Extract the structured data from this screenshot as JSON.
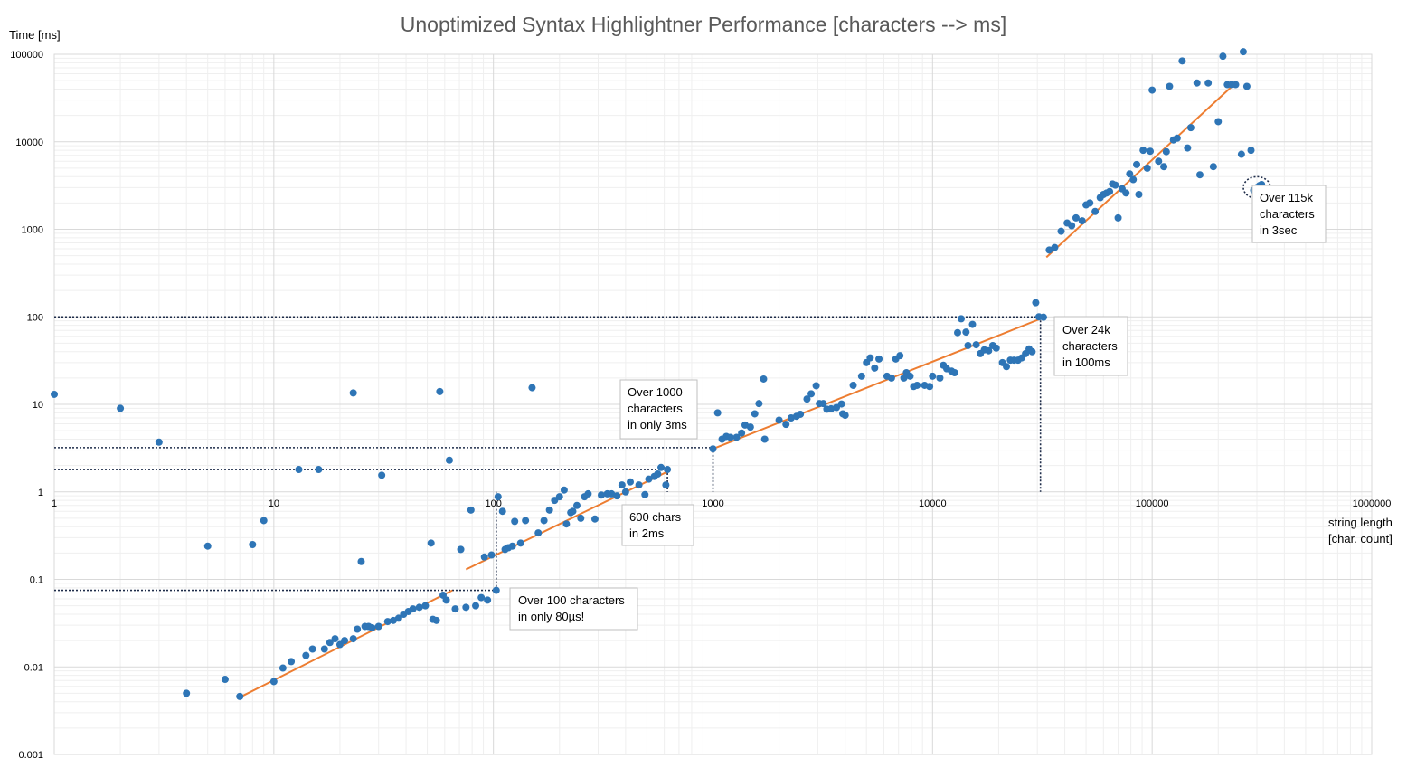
{
  "chart_data": {
    "type": "scatter",
    "title": "Unoptimized Syntax Highlightner Performance  [characters --> ms]",
    "ylabel": "Time [ms]",
    "xlabel_lines": [
      "string length",
      "[char. count]"
    ],
    "x_scale": "log",
    "y_scale": "log",
    "xlim": [
      1,
      1000000
    ],
    "ylim": [
      0.001,
      100000
    ],
    "x_ticks": [
      "1",
      "10",
      "100",
      "1000",
      "10000",
      "100000",
      "1000000"
    ],
    "y_ticks": [
      "100000",
      "10000",
      "1000",
      "100",
      "10",
      "1",
      "0.1",
      "0.01",
      "0.001"
    ],
    "grid": true,
    "colors": {
      "points": "#2e75b6",
      "trend": "#ed7d31",
      "grid": "#d9d9d9",
      "guide": "#1f2d4a"
    },
    "points": [
      [
        1,
        13
      ],
      [
        2,
        9
      ],
      [
        3,
        3.7
      ],
      [
        4,
        0.005
      ],
      [
        5,
        0.24
      ],
      [
        6,
        0.0072
      ],
      [
        7,
        0.0046
      ],
      [
        8,
        0.25
      ],
      [
        9,
        0.47
      ],
      [
        10,
        0.0068
      ],
      [
        11,
        0.0097
      ],
      [
        12,
        0.0115
      ],
      [
        13,
        1.8
      ],
      [
        14,
        0.0135
      ],
      [
        15,
        0.016
      ],
      [
        16,
        1.8
      ],
      [
        17,
        0.016
      ],
      [
        18,
        0.019
      ],
      [
        19,
        0.021
      ],
      [
        20,
        0.018
      ],
      [
        21,
        0.02
      ],
      [
        23,
        0.021
      ],
      [
        23,
        13.5
      ],
      [
        24,
        0.027
      ],
      [
        25,
        0.16
      ],
      [
        26,
        0.029
      ],
      [
        27,
        0.029
      ],
      [
        28,
        0.028
      ],
      [
        30,
        0.029
      ],
      [
        31,
        1.55
      ],
      [
        33,
        0.033
      ],
      [
        35,
        0.034
      ],
      [
        37,
        0.036
      ],
      [
        39,
        0.04
      ],
      [
        41,
        0.043
      ],
      [
        43,
        0.046
      ],
      [
        46,
        0.048
      ],
      [
        49,
        0.05
      ],
      [
        52,
        0.26
      ],
      [
        53,
        0.035
      ],
      [
        55,
        0.034
      ],
      [
        57,
        14
      ],
      [
        59,
        0.066
      ],
      [
        61,
        0.058
      ],
      [
        63,
        2.3
      ],
      [
        67,
        0.046
      ],
      [
        71,
        0.22
      ],
      [
        75,
        0.048
      ],
      [
        79,
        0.62
      ],
      [
        83,
        0.05
      ],
      [
        88,
        0.062
      ],
      [
        91,
        0.18
      ],
      [
        94,
        0.058
      ],
      [
        98,
        0.19
      ],
      [
        103,
        0.075
      ],
      [
        105,
        0.88
      ],
      [
        110,
        0.6
      ],
      [
        113,
        0.22
      ],
      [
        117,
        0.23
      ],
      [
        122,
        0.24
      ],
      [
        125,
        0.46
      ],
      [
        133,
        0.26
      ],
      [
        140,
        0.47
      ],
      [
        150,
        15.5
      ],
      [
        160,
        0.34
      ],
      [
        170,
        0.47
      ],
      [
        180,
        0.62
      ],
      [
        190,
        0.8
      ],
      [
        200,
        0.88
      ],
      [
        210,
        1.05
      ],
      [
        215,
        0.43
      ],
      [
        225,
        0.58
      ],
      [
        230,
        0.6
      ],
      [
        240,
        0.7
      ],
      [
        250,
        0.5
      ],
      [
        260,
        0.88
      ],
      [
        270,
        0.95
      ],
      [
        290,
        0.49
      ],
      [
        310,
        0.92
      ],
      [
        330,
        0.95
      ],
      [
        345,
        0.95
      ],
      [
        365,
        0.9
      ],
      [
        385,
        1.2
      ],
      [
        400,
        1.0
      ],
      [
        420,
        1.3
      ],
      [
        460,
        1.2
      ],
      [
        490,
        0.93
      ],
      [
        510,
        1.4
      ],
      [
        540,
        1.5
      ],
      [
        560,
        1.6
      ],
      [
        580,
        1.9
      ],
      [
        610,
        1.2
      ],
      [
        620,
        1.8
      ],
      [
        1000,
        3.1
      ],
      [
        1050,
        8
      ],
      [
        1100,
        4
      ],
      [
        1150,
        4.3
      ],
      [
        1200,
        4.2
      ],
      [
        1280,
        4.2
      ],
      [
        1350,
        4.7
      ],
      [
        1400,
        5.8
      ],
      [
        1480,
        5.5
      ],
      [
        1550,
        7.8
      ],
      [
        1620,
        10.2
      ],
      [
        1700,
        19.5
      ],
      [
        1720,
        4
      ],
      [
        2000,
        6.6
      ],
      [
        2150,
        5.9
      ],
      [
        2270,
        7
      ],
      [
        2400,
        7.3
      ],
      [
        2500,
        7.7
      ],
      [
        2680,
        11.5
      ],
      [
        2800,
        13.2
      ],
      [
        2950,
        16.3
      ],
      [
        3050,
        10.2
      ],
      [
        3180,
        10.2
      ],
      [
        3300,
        8.8
      ],
      [
        3450,
        8.9
      ],
      [
        3650,
        9.2
      ],
      [
        3850,
        10.1
      ],
      [
        3900,
        7.8
      ],
      [
        4000,
        7.5
      ],
      [
        4350,
        16.5
      ],
      [
        4750,
        21
      ],
      [
        5000,
        30
      ],
      [
        5200,
        34
      ],
      [
        5450,
        26
      ],
      [
        5700,
        33
      ],
      [
        6200,
        21
      ],
      [
        6500,
        20
      ],
      [
        6800,
        33
      ],
      [
        7100,
        36
      ],
      [
        7400,
        20
      ],
      [
        7600,
        23
      ],
      [
        7900,
        21
      ],
      [
        8200,
        16
      ],
      [
        8500,
        16.5
      ],
      [
        9200,
        16.5
      ],
      [
        9700,
        16
      ],
      [
        10000,
        21
      ],
      [
        10800,
        20
      ],
      [
        11200,
        28
      ],
      [
        11600,
        25.5
      ],
      [
        12200,
        24
      ],
      [
        12600,
        23
      ],
      [
        13000,
        66
      ],
      [
        13500,
        95
      ],
      [
        14200,
        67
      ],
      [
        14500,
        47
      ],
      [
        15200,
        82
      ],
      [
        15800,
        48
      ],
      [
        16500,
        38
      ],
      [
        17200,
        42
      ],
      [
        18000,
        41
      ],
      [
        18800,
        47
      ],
      [
        19500,
        44
      ],
      [
        20800,
        30
      ],
      [
        21700,
        27
      ],
      [
        22600,
        32
      ],
      [
        23500,
        32
      ],
      [
        24500,
        32
      ],
      [
        25500,
        34
      ],
      [
        26500,
        38
      ],
      [
        27500,
        43
      ],
      [
        28400,
        40
      ],
      [
        29500,
        145
      ],
      [
        30500,
        100
      ],
      [
        32000,
        99
      ],
      [
        34000,
        580
      ],
      [
        36000,
        620
      ],
      [
        38500,
        950
      ],
      [
        41000,
        1180
      ],
      [
        43000,
        1100
      ],
      [
        45000,
        1350
      ],
      [
        48000,
        1250
      ],
      [
        50000,
        1900
      ],
      [
        52000,
        2000
      ],
      [
        55000,
        1600
      ],
      [
        58000,
        2300
      ],
      [
        60000,
        2500
      ],
      [
        62000,
        2600
      ],
      [
        64000,
        2700
      ],
      [
        66000,
        3300
      ],
      [
        68000,
        3200
      ],
      [
        70000,
        1350
      ],
      [
        73000,
        2900
      ],
      [
        76000,
        2600
      ],
      [
        79000,
        4300
      ],
      [
        82000,
        3700
      ],
      [
        85000,
        5500
      ],
      [
        87000,
        2500
      ],
      [
        91000,
        8000
      ],
      [
        95000,
        5000
      ],
      [
        98000,
        7800
      ],
      [
        100000,
        39000
      ],
      [
        107000,
        6000
      ],
      [
        113000,
        5200
      ],
      [
        116000,
        7700
      ],
      [
        120000,
        43000
      ],
      [
        125000,
        10500
      ],
      [
        130000,
        11000
      ],
      [
        137000,
        84000
      ],
      [
        145000,
        8500
      ],
      [
        150000,
        14500
      ],
      [
        160000,
        47000
      ],
      [
        165000,
        4200
      ],
      [
        180000,
        47000
      ],
      [
        190000,
        5200
      ],
      [
        200000,
        17000
      ],
      [
        210000,
        95000
      ],
      [
        220000,
        45000
      ],
      [
        230000,
        45000
      ],
      [
        240000,
        45000
      ],
      [
        255000,
        7200
      ],
      [
        260000,
        107000
      ],
      [
        270000,
        43000
      ],
      [
        282000,
        8000
      ],
      [
        290000,
        2800
      ],
      [
        300000,
        3000
      ],
      [
        308000,
        3150
      ],
      [
        315000,
        3250
      ]
    ],
    "trend_lines": [
      {
        "x": [
          7,
          65
        ],
        "y": [
          0.0045,
          0.075
        ]
      },
      {
        "x": [
          75,
          620
        ],
        "y": [
          0.13,
          1.7
        ]
      },
      {
        "x": [
          1000,
          31000
        ],
        "y": [
          3.1,
          95
        ]
      },
      {
        "x": [
          33000,
          240000
        ],
        "y": [
          480,
          47000
        ]
      }
    ],
    "guides": [
      {
        "type": "hline",
        "y": 100,
        "x_end": 31000
      },
      {
        "type": "hline",
        "y": 3.2,
        "x_end": 1000
      },
      {
        "type": "hline",
        "y": 1.8,
        "x_end": 620
      },
      {
        "type": "hline",
        "y": 0.075,
        "x_end": 103
      },
      {
        "type": "vline",
        "x": 103,
        "y_from": 0.075,
        "y_to": 1
      },
      {
        "type": "vline",
        "x": 620,
        "y_from": 1.8,
        "y_to": 1
      },
      {
        "type": "vline",
        "x": 1000,
        "y_from": 3.2,
        "y_to": 1
      },
      {
        "type": "vline",
        "x": 31000,
        "y_from": 100,
        "y_to": 1
      }
    ],
    "highlight_ellipse": {
      "x": 300000,
      "y": 3000
    },
    "annotations": [
      {
        "lines": [
          "Over 1000",
          "characters",
          "in only 3ms"
        ]
      },
      {
        "lines": [
          "600 chars",
          "in 2ms"
        ]
      },
      {
        "lines": [
          "Over 100 characters",
          "in only 80µs!"
        ]
      },
      {
        "lines": [
          "Over 24k",
          "characters",
          "in 100ms"
        ]
      },
      {
        "lines": [
          "Over 115k",
          "characters",
          "in 3sec"
        ]
      }
    ]
  }
}
